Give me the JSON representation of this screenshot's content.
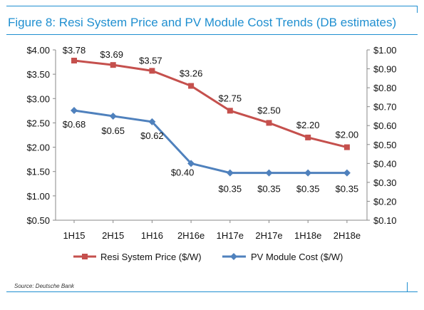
{
  "figure_title": "Figure 8: Resi System Price and PV Module Cost Trends (DB estimates)",
  "source": "Source: Deutsche Bank",
  "colors": {
    "accent": "#1f8fd0",
    "series_resi": "#c5504d",
    "series_pv": "#4f81bd"
  },
  "chart_data": {
    "type": "line",
    "title": "",
    "categories": [
      "1H15",
      "2H15",
      "1H16",
      "2H16e",
      "1H17e",
      "2H17e",
      "1H18e",
      "2H18e"
    ],
    "ylim_left": [
      0.5,
      4.0
    ],
    "ylim_right": [
      0.1,
      1.0
    ],
    "yticks_left": [
      "$4.00",
      "$3.50",
      "$3.00",
      "$2.50",
      "$2.00",
      "$1.50",
      "$1.00",
      "$0.50"
    ],
    "yticks_right": [
      "$1.00",
      "$0.90",
      "$0.80",
      "$0.70",
      "$0.60",
      "$0.50",
      "$0.40",
      "$0.30",
      "$0.20",
      "$0.10"
    ],
    "grid": false,
    "legend_position": "bottom",
    "series": [
      {
        "name": "Resi System Price ($/W)",
        "axis": "left",
        "color": "#c5504d",
        "marker": "square",
        "values": [
          3.78,
          3.69,
          3.57,
          3.26,
          2.75,
          2.5,
          2.2,
          2.0
        ],
        "labels": [
          "$3.78",
          "$3.69",
          "$3.57",
          "$3.26",
          "$2.75",
          "$2.50",
          "$2.20",
          "$2.00"
        ]
      },
      {
        "name": "PV Module Cost ($/W)",
        "axis": "right",
        "color": "#4f81bd",
        "marker": "diamond",
        "values": [
          0.68,
          0.65,
          0.62,
          0.4,
          0.35,
          0.35,
          0.35,
          0.35
        ],
        "labels": [
          "$0.68",
          "$0.65",
          "$0.62",
          "$0.40",
          "$0.35",
          "$0.35",
          "$0.35",
          "$0.35"
        ]
      }
    ]
  }
}
